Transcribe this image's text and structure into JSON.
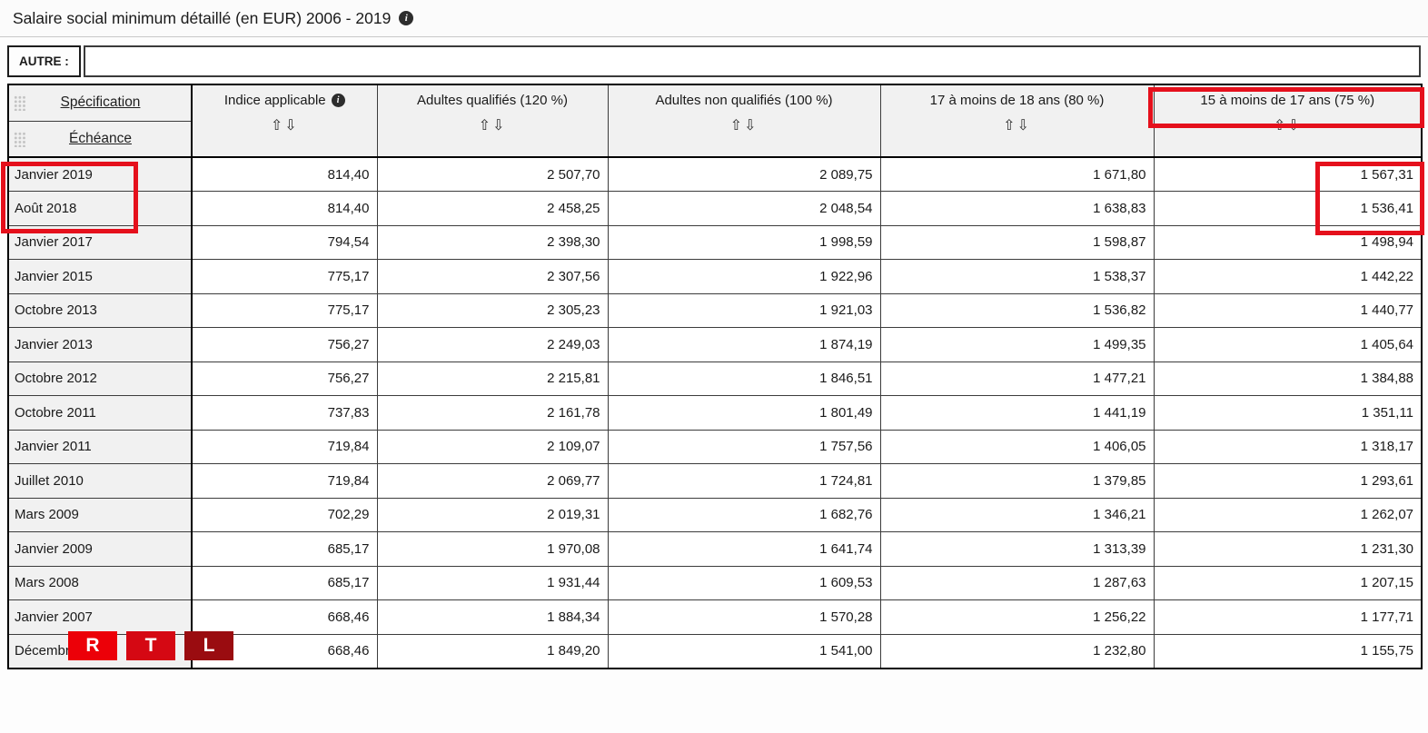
{
  "title": "Salaire social minimum détaillé (en EUR) 2006 - 2019",
  "icons": {
    "info": "i",
    "sort": "⇧⇩"
  },
  "filter": {
    "label": "AUTRE :",
    "value": ""
  },
  "table": {
    "spec_headers": {
      "line1": "Spécification",
      "line2": "Échéance"
    },
    "columns": [
      "Indice applicable",
      "Adultes qualifiés (120 %)",
      "Adultes non qualifiés (100 %)",
      "17 à moins de 18 ans (80 %)",
      "15 à moins de 17 ans (75 %)"
    ],
    "rows": [
      {
        "date": "Janvier 2019",
        "values": [
          "814,40",
          "2 507,70",
          "2 089,75",
          "1 671,80",
          "1 567,31"
        ]
      },
      {
        "date": "Août 2018",
        "values": [
          "814,40",
          "2 458,25",
          "2 048,54",
          "1 638,83",
          "1 536,41"
        ]
      },
      {
        "date": "Janvier 2017",
        "values": [
          "794,54",
          "2 398,30",
          "1 998,59",
          "1 598,87",
          "1 498,94"
        ]
      },
      {
        "date": "Janvier 2015",
        "values": [
          "775,17",
          "2 307,56",
          "1 922,96",
          "1 538,37",
          "1 442,22"
        ]
      },
      {
        "date": "Octobre 2013",
        "values": [
          "775,17",
          "2 305,23",
          "1 921,03",
          "1 536,82",
          "1 440,77"
        ]
      },
      {
        "date": "Janvier 2013",
        "values": [
          "756,27",
          "2 249,03",
          "1 874,19",
          "1 499,35",
          "1 405,64"
        ]
      },
      {
        "date": "Octobre 2012",
        "values": [
          "756,27",
          "2 215,81",
          "1 846,51",
          "1 477,21",
          "1 384,88"
        ]
      },
      {
        "date": "Octobre 2011",
        "values": [
          "737,83",
          "2 161,78",
          "1 801,49",
          "1 441,19",
          "1 351,11"
        ]
      },
      {
        "date": "Janvier 2011",
        "values": [
          "719,84",
          "2 109,07",
          "1 757,56",
          "1 406,05",
          "1 318,17"
        ]
      },
      {
        "date": "Juillet 2010",
        "values": [
          "719,84",
          "2 069,77",
          "1 724,81",
          "1 379,85",
          "1 293,61"
        ]
      },
      {
        "date": "Mars 2009",
        "values": [
          "702,29",
          "2 019,31",
          "1 682,76",
          "1 346,21",
          "1 262,07"
        ]
      },
      {
        "date": "Janvier 2009",
        "values": [
          "685,17",
          "1 970,08",
          "1 641,74",
          "1 313,39",
          "1 231,30"
        ]
      },
      {
        "date": "Mars 2008",
        "values": [
          "685,17",
          "1 931,44",
          "1 609,53",
          "1 287,63",
          "1 207,15"
        ]
      },
      {
        "date": "Janvier 2007",
        "values": [
          "668,46",
          "1 884,34",
          "1 570,28",
          "1 256,22",
          "1 177,71"
        ]
      },
      {
        "date": "Décembre 2006",
        "values": [
          "668,46",
          "1 849,20",
          "1 541,00",
          "1 232,80",
          "1 155,75"
        ]
      }
    ]
  },
  "annotations": {
    "color": "#e5101c",
    "boxes": [
      "column-15-17-ans-header",
      "dates-janvier-2019-aout-2018",
      "values-15-17-ans-top-rows"
    ]
  },
  "watermark": {
    "letters": [
      "R",
      "T",
      "L"
    ],
    "colors": [
      "#ec0008",
      "#d50813",
      "#9a0c10"
    ]
  }
}
